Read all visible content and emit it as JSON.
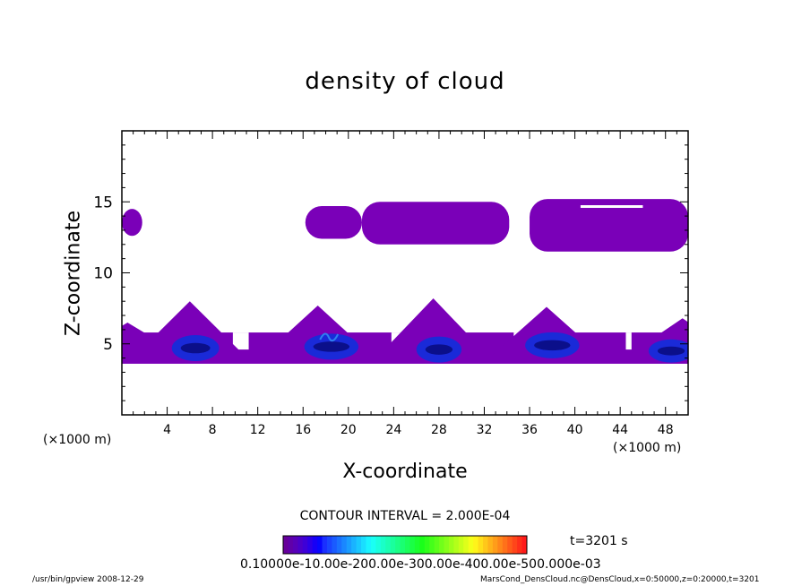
{
  "chart_data": {
    "type": "heatmap",
    "title": "density of cloud",
    "xlabel": "X-coordinate",
    "ylabel": "Z-coordinate",
    "x_unit": "(×1000 m)",
    "y_unit": "(×1000 m)",
    "xlim": [
      0,
      50
    ],
    "ylim": [
      0,
      20
    ],
    "x_ticks": [
      "4",
      "8",
      "12",
      "16",
      "20",
      "24",
      "28",
      "32",
      "36",
      "40",
      "44",
      "48"
    ],
    "y_ticks": [
      "5",
      "10",
      "15"
    ],
    "contour_interval": "CONTOUR INTERVAL = 2.000E-04",
    "time": "t=3201 s",
    "colorbar_labels": "0.10000e-10.00e-200.00e-300.00e-400.00e-500.000e-03",
    "colors": {
      "low": "#7a00b8",
      "mid": "#1a2ad8",
      "high": "#0b0f8a",
      "light": "#2f7ff0"
    },
    "upper_clouds": [
      {
        "x0": 0,
        "x1": 1.8,
        "z0": 12.6,
        "z1": 14.5
      },
      {
        "x0": 16.2,
        "x1": 21.2,
        "z0": 12.4,
        "z1": 14.7
      },
      {
        "x0": 21.2,
        "x1": 34.2,
        "z0": 12.0,
        "z1": 15.0
      },
      {
        "x0": 36.0,
        "x1": 50,
        "z0": 11.5,
        "z1": 15.2
      }
    ],
    "lower_peaks": [
      {
        "x": 0.5,
        "top": 6.5
      },
      {
        "x": 6.0,
        "top": 8.0
      },
      {
        "x": 17.3,
        "top": 7.7
      },
      {
        "x": 27.5,
        "top": 8.2
      },
      {
        "x": 37.5,
        "top": 7.6
      },
      {
        "x": 49.5,
        "top": 6.8
      }
    ],
    "lower_cores": [
      {
        "x": 6.5,
        "z": 4.7,
        "w": 2.6,
        "h": 0.6
      },
      {
        "x": 18.5,
        "z": 4.8,
        "w": 3.2,
        "h": 0.6
      },
      {
        "x": 28.0,
        "z": 4.6,
        "w": 2.4,
        "h": 0.6
      },
      {
        "x": 38.0,
        "z": 4.9,
        "w": 3.2,
        "h": 0.6
      },
      {
        "x": 48.5,
        "z": 4.5,
        "w": 2.4,
        "h": 0.5
      }
    ]
  },
  "footer": {
    "left": "/usr/bin/gpview   2008-12-29",
    "right": "MarsCond_DensCloud.nc@DensCloud,x=0:50000,z=0:20000,t=3201"
  }
}
